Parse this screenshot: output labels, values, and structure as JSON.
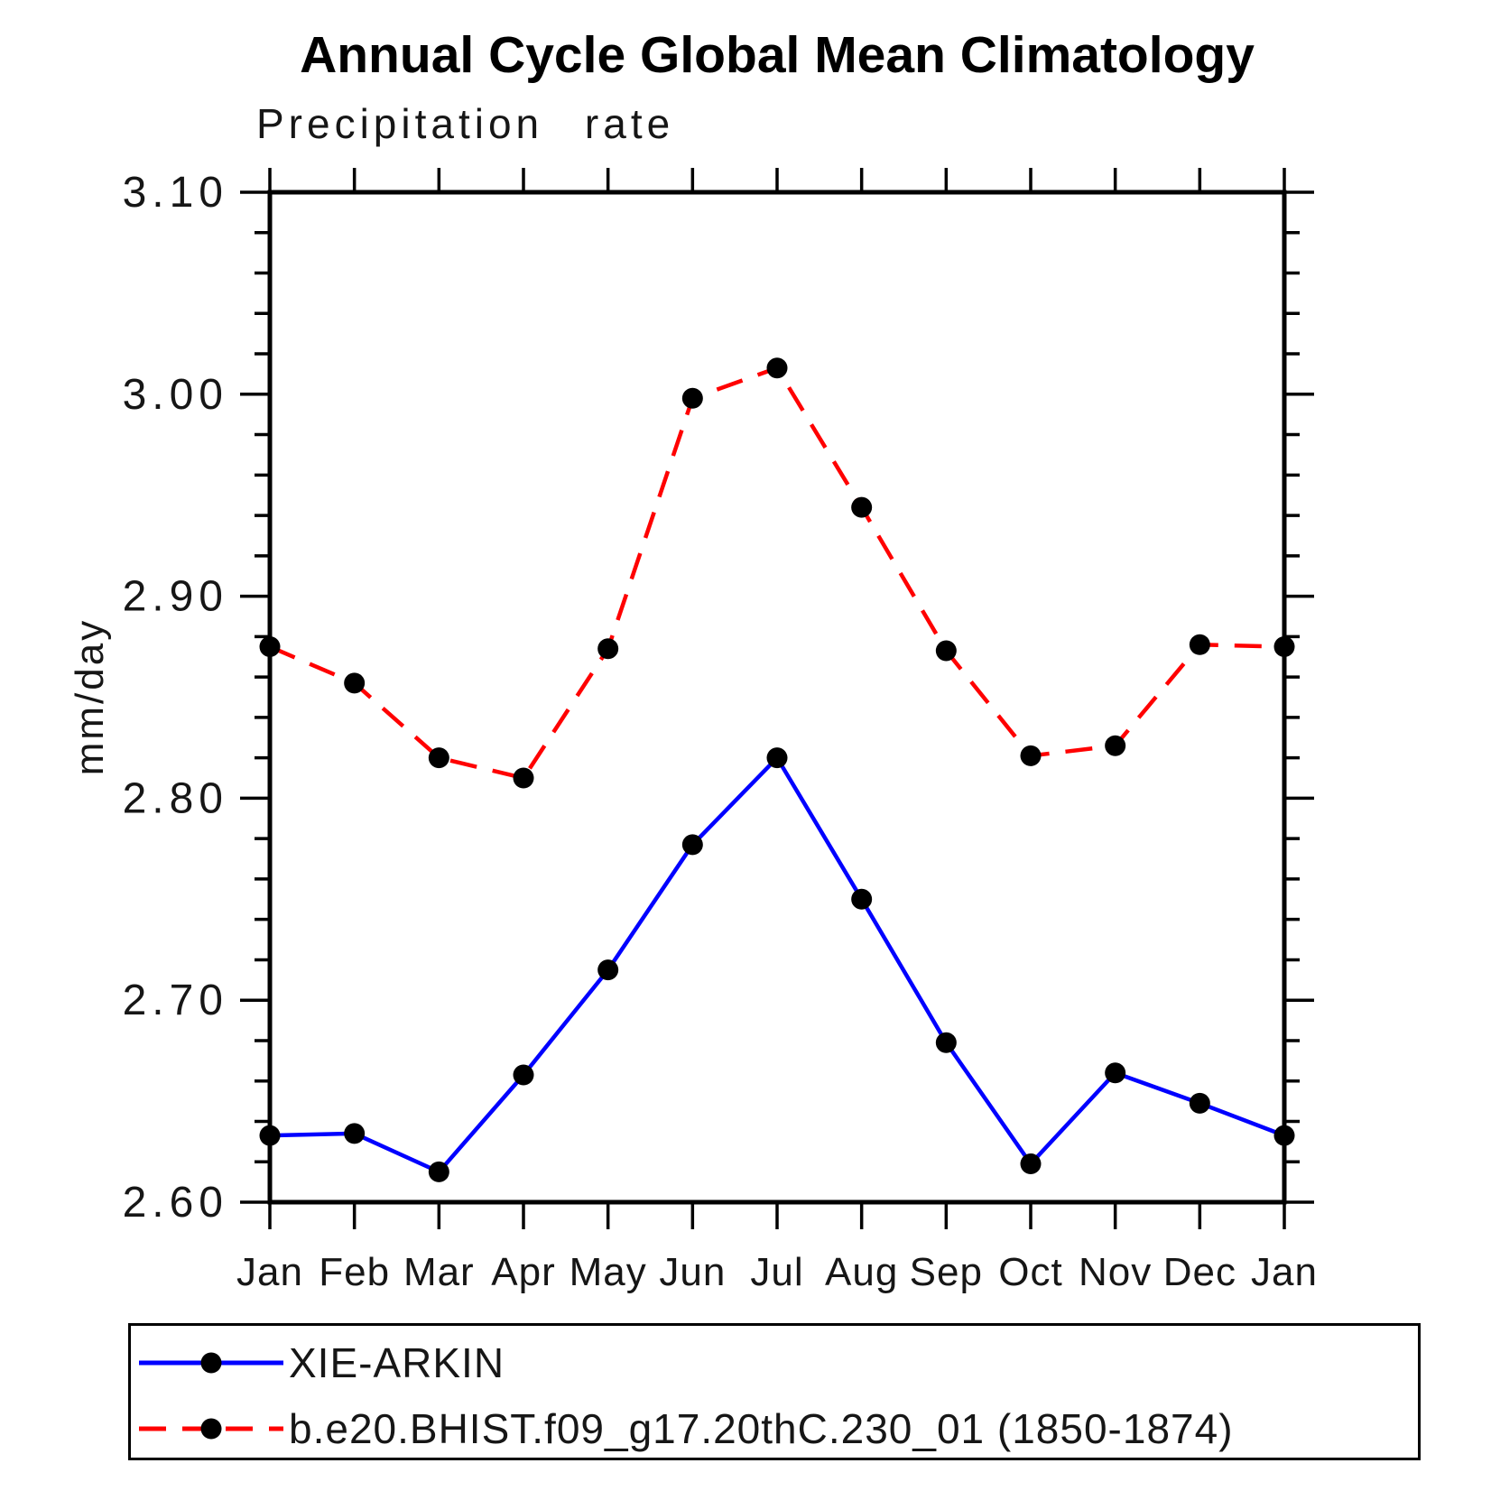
{
  "title": "Annual Cycle Global Mean Climatology",
  "subtitle": "Precipitation rate",
  "chart_data": {
    "type": "line",
    "title": "Annual Cycle Global Mean Climatology",
    "subtitle": "Precipitation rate",
    "xlabel": "",
    "ylabel": "mm/day",
    "x_labels": [
      "Jan",
      "Feb",
      "Mar",
      "Apr",
      "May",
      "Jun",
      "Jul",
      "Aug",
      "Sep",
      "Oct",
      "Nov",
      "Dec",
      "Jan"
    ],
    "ylim": [
      2.6,
      3.1
    ],
    "ytick_major_step": 0.1,
    "ytick_minor_step": 0.02,
    "ytick_labels": [
      "2.60",
      "2.70",
      "2.80",
      "2.90",
      "3.00",
      "3.10"
    ],
    "grid": false,
    "legend_position": "bottom",
    "axis_color": "#000000",
    "marker": "circle",
    "marker_color": "#000000",
    "series": [
      {
        "name": "XIE-ARKIN",
        "color": "#0000ff",
        "line_style": "solid",
        "values": [
          2.633,
          2.634,
          2.615,
          2.663,
          2.715,
          2.777,
          2.82,
          2.75,
          2.679,
          2.619,
          2.664,
          2.649,
          2.633
        ]
      },
      {
        "name": "b.e20.BHIST.f09_g17.20thC.230_01 (1850-1874)",
        "color": "#ff0000",
        "line_style": "dashed",
        "values": [
          2.875,
          2.857,
          2.82,
          2.81,
          2.874,
          2.998,
          3.013,
          2.944,
          2.873,
          2.821,
          2.826,
          2.876,
          2.875
        ]
      }
    ]
  }
}
